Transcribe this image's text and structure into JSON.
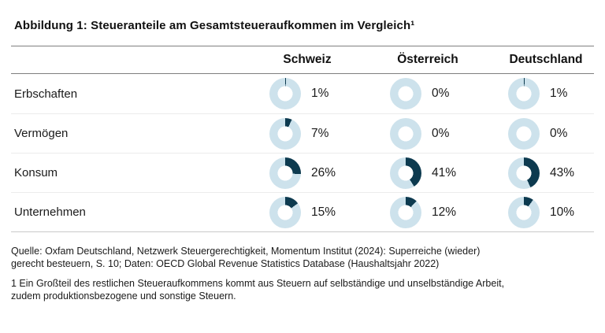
{
  "title": "Abbildung 1: Steueranteile am Gesamtsteueraufkommen im Vergleich¹",
  "chart_data": {
    "type": "donut-table",
    "title": "Abbildung 1: Steueranteile am Gesamtsteueraufkommen im Vergleich¹",
    "unit": "%",
    "columns": [
      "Schweiz",
      "Österreich",
      "Deutschland"
    ],
    "rows": [
      {
        "label": "Erbschaften",
        "values": [
          1,
          0,
          1
        ]
      },
      {
        "label": "Vermögen",
        "values": [
          7,
          0,
          0
        ]
      },
      {
        "label": "Konsum",
        "values": [
          26,
          41,
          43
        ]
      },
      {
        "label": "Unternehmen",
        "values": [
          15,
          12,
          10
        ]
      }
    ],
    "colors": {
      "ring_base": "#cde2ec",
      "ring_value": "#0d3a4f",
      "hole": "#ffffff"
    },
    "value_range": [
      0,
      100
    ],
    "legend_position": "none"
  },
  "source": {
    "line1": "Quelle: Oxfam Deutschland, Netzwerk Steuergerechtigkeit, Momentum Institut (2024): Superreiche (wieder)",
    "line2": "gerecht besteuern, S. 10; Daten: OECD Global Revenue Statistics Database (Haushaltsjahr 2022)"
  },
  "footnote": {
    "line1": "1 Ein Großteil des restlichen Steueraufkommens kommt aus Steuern auf selbständige und unselbständige Arbeit,",
    "line2": "zudem produktionsbezogene und sonstige Steuern."
  }
}
